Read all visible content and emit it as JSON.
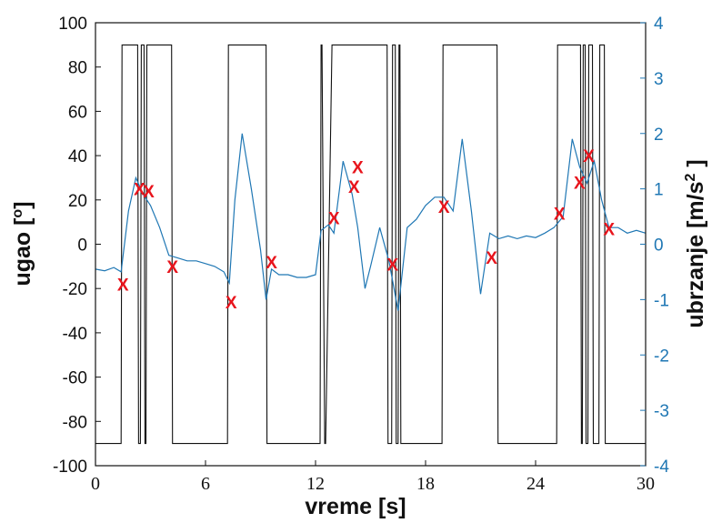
{
  "chart_data": {
    "type": "line",
    "xlabel": "vreme [s]",
    "ylabel_left": "ugao [",
    "ylabel_left_sup": "o",
    "ylabel_left_end": "]",
    "ylabel_right": "ubrzanje [m/s",
    "ylabel_right_sup": "2",
    "ylabel_right_end": " ]",
    "xlim": [
      0,
      30
    ],
    "ylim_left": [
      -100,
      100
    ],
    "ylim_right": [
      -4,
      4
    ],
    "x_ticks": [
      "0",
      "6",
      "12",
      "18",
      "24",
      "30"
    ],
    "x_tick_values": [
      0,
      6,
      12,
      18,
      24,
      30
    ],
    "y_left_ticks": [
      "100",
      "80",
      "60",
      "40",
      "20",
      "0",
      "-20",
      "-40",
      "-60",
      "-80",
      "-100"
    ],
    "y_left_tick_values": [
      100,
      80,
      60,
      40,
      20,
      0,
      -20,
      -40,
      -60,
      -80,
      -100
    ],
    "y_right_ticks": [
      "4",
      "3",
      "2",
      "1",
      "0",
      "-1",
      "-2",
      "-3",
      "-4"
    ],
    "y_right_tick_values": [
      4,
      3,
      2,
      1,
      0,
      -1,
      -2,
      -3,
      -4
    ],
    "grid": false,
    "colors": {
      "angle": "#111111",
      "acceleration": "#1f77b4",
      "markers": "#e8141c",
      "right_axis": "#1f77b4"
    },
    "series": [
      {
        "axis": "left",
        "x": [
          0,
          1.4,
          1.45,
          2.3,
          2.35,
          2.45,
          2.5,
          2.65,
          2.7,
          2.75,
          2.8,
          2.95,
          3.0,
          4.15,
          4.2,
          7.2,
          7.25,
          9.3,
          9.35,
          12.25,
          12.3,
          12.35,
          12.5,
          12.55,
          12.9,
          12.95,
          15.9,
          15.95,
          16.15,
          16.2,
          16.35,
          16.4,
          16.5,
          16.55,
          16.6,
          16.65,
          18.9,
          18.95,
          21.9,
          21.95,
          25.15,
          25.2,
          26.45,
          26.5,
          26.55,
          26.6,
          26.7,
          26.75,
          26.85,
          26.9,
          27.1,
          27.15,
          27.45,
          27.5,
          27.75,
          27.8,
          30
        ],
        "values": [
          -90,
          -90,
          90,
          90,
          -90,
          -90,
          90,
          90,
          -90,
          -90,
          90,
          90,
          90,
          90,
          -90,
          -90,
          90,
          90,
          -90,
          -90,
          90,
          90,
          -90,
          -90,
          90,
          90,
          90,
          -90,
          -90,
          90,
          90,
          -90,
          -90,
          90,
          90,
          -90,
          -90,
          90,
          90,
          -90,
          -90,
          90,
          90,
          -90,
          -90,
          90,
          90,
          -90,
          -90,
          90,
          90,
          -90,
          -90,
          90,
          90,
          -90,
          -90
        ]
      },
      {
        "axis": "right",
        "x": [
          0,
          0.5,
          1.0,
          1.4,
          1.8,
          2.2,
          2.6,
          3.0,
          3.5,
          4.0,
          4.5,
          5.0,
          5.5,
          6.0,
          6.5,
          7.0,
          7.3,
          7.6,
          8.0,
          8.5,
          9.0,
          9.3,
          9.6,
          10.0,
          10.5,
          11.0,
          11.5,
          12.0,
          12.3,
          12.7,
          13.0,
          13.5,
          14.0,
          14.3,
          14.7,
          15.0,
          15.5,
          16.0,
          16.5,
          17.0,
          17.5,
          18.0,
          18.5,
          19.0,
          19.5,
          20.0,
          20.5,
          21.0,
          21.5,
          22.0,
          22.5,
          23.0,
          23.5,
          24.0,
          24.5,
          25.0,
          25.5,
          26.0,
          26.4,
          26.8,
          27.2,
          27.6,
          28.0,
          28.5,
          29.0,
          29.5,
          30.0
        ],
        "values": [
          -0.45,
          -0.48,
          -0.42,
          -0.5,
          0.6,
          1.2,
          0.9,
          0.7,
          0.3,
          -0.2,
          -0.25,
          -0.3,
          -0.3,
          -0.35,
          -0.4,
          -0.5,
          -0.7,
          0.8,
          2.0,
          1.0,
          -0.1,
          -1.0,
          -0.45,
          -0.55,
          -0.55,
          -0.6,
          -0.6,
          -0.55,
          0.25,
          0.35,
          0.2,
          1.5,
          0.9,
          0.3,
          -0.8,
          -0.4,
          0.3,
          -0.3,
          -1.2,
          0.3,
          0.45,
          0.7,
          0.85,
          0.85,
          0.6,
          1.9,
          0.6,
          -0.9,
          0.2,
          0.1,
          0.15,
          0.1,
          0.15,
          0.12,
          0.2,
          0.3,
          0.5,
          1.9,
          1.4,
          1.1,
          1.5,
          0.8,
          0.3,
          0.3,
          0.2,
          0.25,
          0.2
        ]
      }
    ],
    "markers": {
      "label": "X",
      "x": [
        1.5,
        2.4,
        2.9,
        4.2,
        7.4,
        9.6,
        13.0,
        14.1,
        14.3,
        16.2,
        19.0,
        21.6,
        25.3,
        26.4,
        26.9,
        28.0
      ],
      "y": [
        -18,
        25,
        24,
        -10,
        -26,
        -8,
        12,
        26,
        35,
        -9,
        17,
        -6,
        14,
        28,
        40,
        7
      ]
    }
  }
}
